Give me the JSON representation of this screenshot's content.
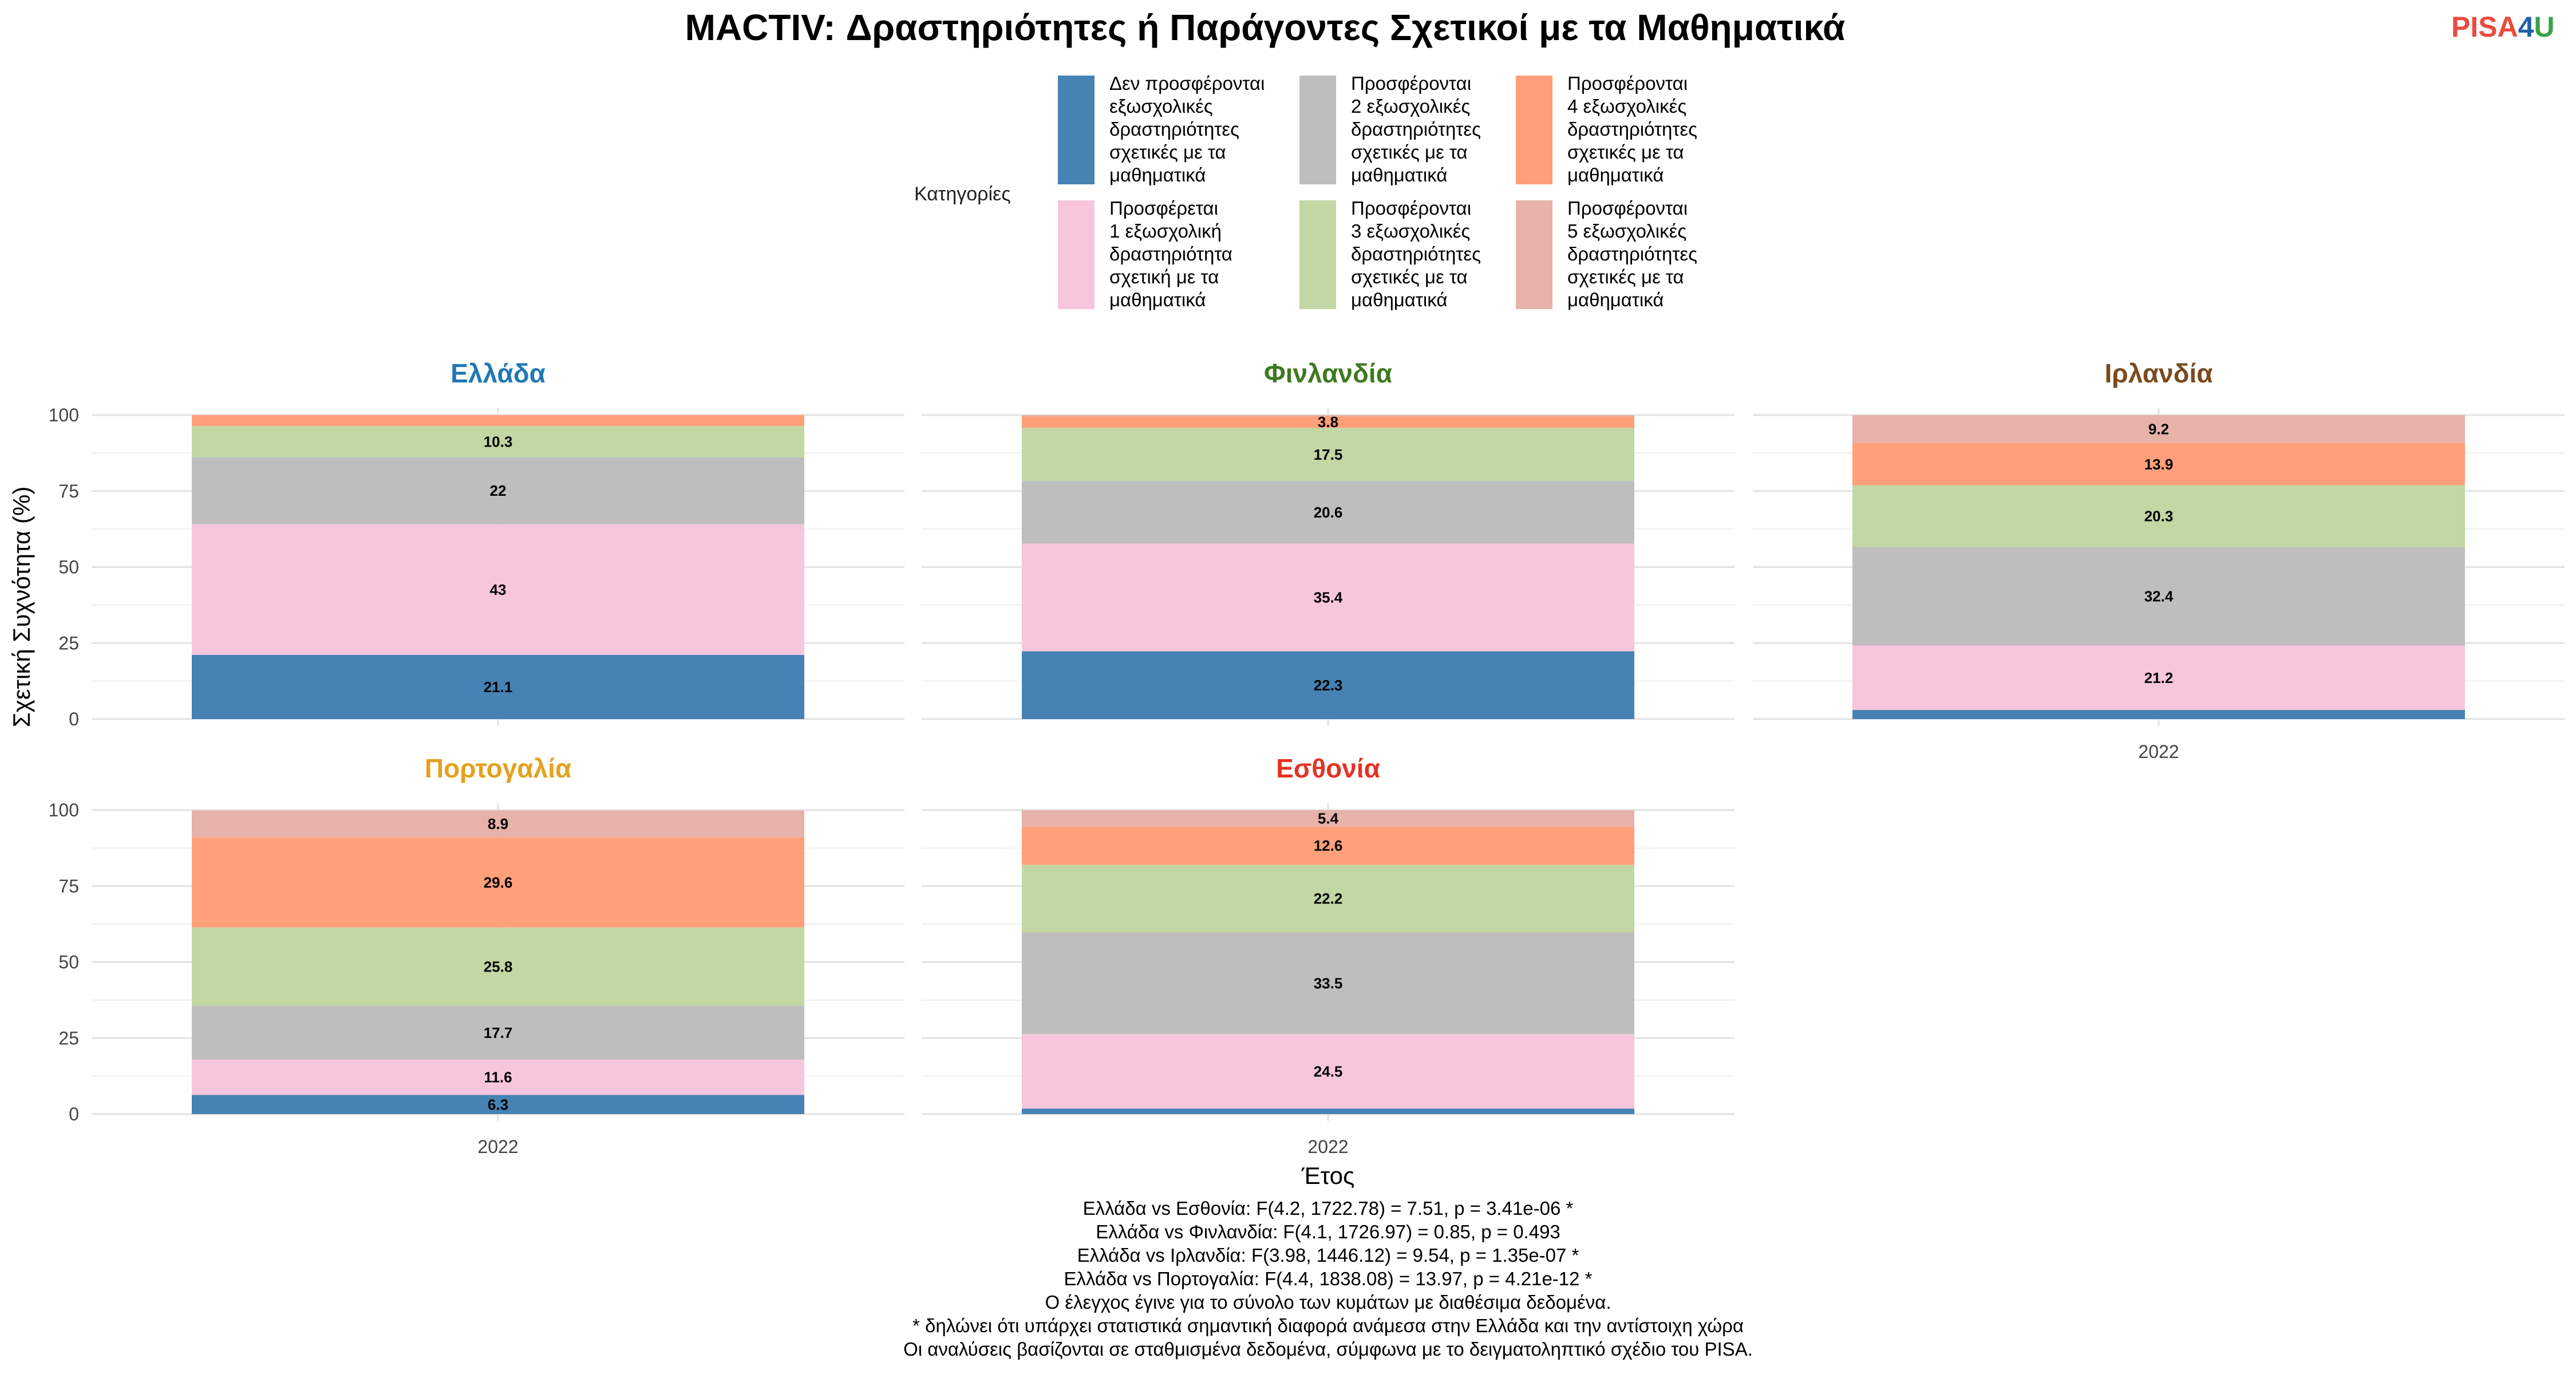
{
  "title": "MACTIV: Δραστηριότητες ή Παράγοντες Σχετικοί με τα Μαθηματικά",
  "logo": {
    "part1": "PISA",
    "part2": "4",
    "part3": "U",
    "color1": "#e94b3c",
    "color2": "#1f5fa8",
    "color3": "#3aa047"
  },
  "legend": {
    "title": "Κατηγορίες",
    "position": "top",
    "entries": [
      {
        "lines": [
          "Δεν προσφέρονται",
          "εξωσχολικές",
          "δραστηριότητες",
          "σχετικές με τα",
          "μαθηματικά"
        ],
        "color": "#4682b4"
      },
      {
        "lines": [
          "Προσφέρεται",
          "1 εξωσχολική",
          "δραστηριότητα",
          "σχετική με τα",
          "μαθηματικά"
        ],
        "color": "#f7c6dc"
      },
      {
        "lines": [
          "Προσφέρονται",
          "2 εξωσχολικές",
          "δραστηριότητες",
          "σχετικές με τα",
          "μαθηματικά"
        ],
        "color": "#bebebe"
      },
      {
        "lines": [
          "Προσφέρονται",
          "3 εξωσχολικές",
          "δραστηριότητες",
          "σχετικές με τα",
          "μαθηματικά"
        ],
        "color": "#c2d7a4"
      },
      {
        "lines": [
          "Προσφέρονται",
          "4 εξωσχολικές",
          "δραστηριότητες",
          "σχετικές με τα",
          "μαθηματικά"
        ],
        "color": "#ffa07a"
      },
      {
        "lines": [
          "Προσφέρονται",
          "5 εξωσχολικές",
          "δραστηριότητες",
          "σχετικές με τα",
          "μαθηματικά"
        ],
        "color": "#e6b2a9"
      }
    ]
  },
  "chart_data": {
    "type": "bar",
    "stacked": true,
    "ylabel": "Σχετική Συχνότητα (%)",
    "xlabel": "Έτος",
    "ylim": [
      0,
      100
    ],
    "yticks": [
      0,
      25,
      50,
      75,
      100
    ],
    "grid": true,
    "categories": [
      "2022"
    ],
    "series_names": [
      "Δεν προσφέρονται εξωσχολικές δραστηριότητες σχετικές με τα μαθηματικά",
      "Προσφέρεται 1 εξωσχολική δραστηριότητα σχετική με τα μαθηματικά",
      "Προσφέρονται 2 εξωσχολικές δραστηριότητες σχετικές με τα μαθηματικά",
      "Προσφέρονται 3 εξωσχολικές δραστηριότητες σχετικές με τα μαθηματικά",
      "Προσφέρονται 4 εξωσχολικές δραστηριότητες σχετικές με τα μαθηματικά",
      "Προσφέρονται 5 εξωσχολικές δραστηριότητες σχετικές με τα μαθηματικά"
    ],
    "facets": [
      {
        "country": "Ελλάδα",
        "color": "#1f78b4",
        "year": "2022",
        "show_x_ticks": false,
        "values": [
          21.1,
          43,
          22,
          10.3,
          3.6,
          0
        ],
        "labels": [
          "21.1",
          "43",
          "22",
          "10.3",
          "",
          ""
        ]
      },
      {
        "country": "Φινλανδία",
        "color": "#3d7a1e",
        "year": "2022",
        "show_x_ticks": false,
        "values": [
          22.3,
          35.4,
          20.6,
          17.5,
          3.8,
          0.4
        ],
        "labels": [
          "22.3",
          "35.4",
          "20.6",
          "17.5",
          "3.8",
          ""
        ]
      },
      {
        "country": "Ιρλανδία",
        "color": "#7b4a1e",
        "year": "2022",
        "show_x_ticks": true,
        "values": [
          3.0,
          21.2,
          32.4,
          20.3,
          13.9,
          9.2
        ],
        "labels": [
          "",
          "21.2",
          "32.4",
          "20.3",
          "13.9",
          "9.2"
        ]
      },
      {
        "country": "Πορτογαλία",
        "color": "#e6a01e",
        "year": "2022",
        "show_x_ticks": true,
        "values": [
          6.3,
          11.6,
          17.7,
          25.8,
          29.6,
          8.9
        ],
        "labels": [
          "6.3",
          "11.6",
          "17.7",
          "25.8",
          "29.6",
          "8.9"
        ]
      },
      {
        "country": "Εσθονία",
        "color": "#e53226",
        "year": "2022",
        "show_x_ticks": true,
        "values": [
          1.8,
          24.5,
          33.5,
          22.2,
          12.6,
          5.4
        ],
        "labels": [
          "",
          "24.5",
          "33.5",
          "22.2",
          "12.6",
          "5.4"
        ]
      }
    ]
  },
  "notes": [
    "Ελλάδα vs Εσθονία: F(4.2, 1722.78) = 7.51, p = 3.41e-06 *",
    "Ελλάδα vs Φινλανδία: F(4.1, 1726.97) = 0.85, p = 0.493",
    "Ελλάδα vs Ιρλανδία: F(3.98, 1446.12) = 9.54, p = 1.35e-07 *",
    "Ελλάδα vs Πορτογαλία: F(4.4, 1838.08) = 13.97, p = 4.21e-12 *",
    "Ο έλεγχος έγινε για το σύνολο των κυμάτων με διαθέσιμα δεδομένα.",
    "* δηλώνει ότι υπάρχει στατιστικά σημαντική διαφορά ανάμεσα στην Ελλάδα και την αντίστοιχη χώρα",
    "Οι αναλύσεις βασίζονται σε σταθμισμένα δεδομένα, σύμφωνα με το δειγματοληπτικό σχέδιο του PISA."
  ]
}
